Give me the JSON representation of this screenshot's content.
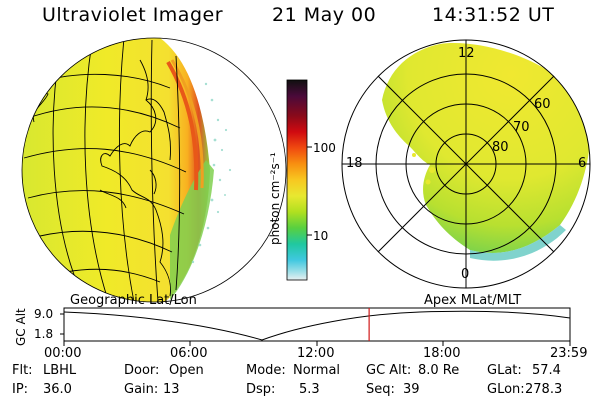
{
  "header": {
    "instrument": "Ultraviolet Imager",
    "date": "21 May 00",
    "time": "14:31:52 UT"
  },
  "colorbar": {
    "unit_label": "photon cm⁻²s⁻¹",
    "ticks": [
      "100",
      "10"
    ],
    "colors": [
      "#101010",
      "#4a0a3a",
      "#8a0a1a",
      "#d00a10",
      "#f04a10",
      "#f89010",
      "#f8c820",
      "#e8e830",
      "#b0e020",
      "#58d040",
      "#20c8a0",
      "#40c8e0",
      "#a0e0e8",
      "#e8f0f0"
    ]
  },
  "geo_panel": {
    "label": "Geographic Lat/Lon"
  },
  "polar_panel": {
    "label": "Apex MLat/MLT",
    "mlt_labels": [
      "12",
      "18",
      "6",
      "0"
    ],
    "lat_labels": [
      "60",
      "70",
      "80"
    ]
  },
  "orbit": {
    "axis_label": "GC Alt",
    "ytick_top": "9.0",
    "ytick_bottom": "1.8",
    "time_ticks": [
      "00:00",
      "06:00",
      "12:00",
      "18:00",
      "23:59"
    ],
    "current_time_fraction": 0.603
  },
  "info": {
    "flt_label": "Flt:",
    "flt_value": "LBHL",
    "ip_label": "IP:",
    "ip_value": "36.0",
    "door_label": "Door:",
    "door_value": "Open",
    "gain_label": "Gain:",
    "gain_value": "13",
    "mode_label": "Mode:",
    "mode_value": "Normal",
    "dsp_label": "Dsp:",
    "dsp_value": "5.3",
    "gcalt_label": "GC Alt:",
    "gcalt_value": "8.0 Re",
    "seq_label": "Seq:",
    "seq_value": "39",
    "glat_label": "GLat:",
    "glat_value": "57.4",
    "glon_label": "GLon:",
    "glon_value": "278.3"
  }
}
